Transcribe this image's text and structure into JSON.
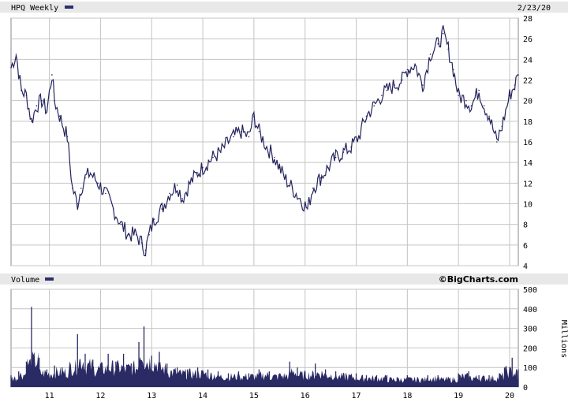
{
  "chart_data": [
    {
      "type": "line",
      "title": "HPQ Weekly",
      "date": "2/23/20",
      "x_tick_labels": [
        "11",
        "12",
        "13",
        "14",
        "15",
        "16",
        "17",
        "18",
        "19",
        "20"
      ],
      "y_tick_labels": [
        "4",
        "6",
        "8",
        "10",
        "12",
        "14",
        "16",
        "18",
        "20",
        "22",
        "24",
        "26",
        "28"
      ],
      "ylim": [
        4,
        28
      ],
      "xlim": [
        2010.25,
        2020.17
      ],
      "grid": true,
      "legend": "top-left",
      "series": [
        {
          "name": "HPQ Weekly",
          "x": [
            2010.25,
            2010.35,
            2010.45,
            2010.55,
            2010.65,
            2010.75,
            2010.85,
            2010.95,
            2011.05,
            2011.1,
            2011.2,
            2011.35,
            2011.45,
            2011.55,
            2011.62,
            2011.7,
            2011.8,
            2011.95,
            2012.1,
            2012.25,
            2012.4,
            2012.55,
            2012.7,
            2012.8,
            2012.88,
            2012.95,
            2013.05,
            2013.2,
            2013.35,
            2013.5,
            2013.6,
            2013.75,
            2013.9,
            2014.0,
            2014.2,
            2014.35,
            2014.5,
            2014.6,
            2014.75,
            2014.9,
            2015.0,
            2015.1,
            2015.25,
            2015.4,
            2015.5,
            2015.6,
            2015.75,
            2015.9,
            2016.05,
            2016.15,
            2016.3,
            2016.45,
            2016.6,
            2016.75,
            2016.9,
            2017.05,
            2017.2,
            2017.35,
            2017.5,
            2017.6,
            2017.75,
            2017.9,
            2018.0,
            2018.15,
            2018.3,
            2018.45,
            2018.6,
            2018.7,
            2018.8,
            2018.9,
            2019.0,
            2019.15,
            2019.25,
            2019.4,
            2019.5,
            2019.6,
            2019.75,
            2019.85,
            2020.0,
            2020.1,
            2020.17
          ],
          "values": [
            23.2,
            24.5,
            21.0,
            20.5,
            18.0,
            19.5,
            20.0,
            19.0,
            22.5,
            20.0,
            18.5,
            16.5,
            11.5,
            10.0,
            11.5,
            12.5,
            13.0,
            12.0,
            11.0,
            9.5,
            8.0,
            7.0,
            7.0,
            6.2,
            5.5,
            7.0,
            8.5,
            9.5,
            11.0,
            11.8,
            10.5,
            12.0,
            13.0,
            13.5,
            14.5,
            15.0,
            16.0,
            16.5,
            17.0,
            16.5,
            18.5,
            17.0,
            15.5,
            14.5,
            13.5,
            12.5,
            11.5,
            10.5,
            9.5,
            11.5,
            12.5,
            13.5,
            14.5,
            15.0,
            15.5,
            16.5,
            18.5,
            19.5,
            20.5,
            21.0,
            21.5,
            22.0,
            23.0,
            23.5,
            21.5,
            24.5,
            25.5,
            26.5,
            25.0,
            23.0,
            20.5,
            20.0,
            19.5,
            21.0,
            19.5,
            18.5,
            16.0,
            17.5,
            20.5,
            21.5,
            22.5
          ]
        }
      ]
    },
    {
      "type": "bar",
      "title": "Volume",
      "ylabel": "Millions",
      "y_tick_labels": [
        "0",
        "100",
        "200",
        "300",
        "400",
        "500"
      ],
      "ylim": [
        0,
        500
      ],
      "x_tick_labels": [
        "11",
        "12",
        "13",
        "14",
        "15",
        "16",
        "17",
        "18",
        "19",
        "20"
      ],
      "xlim": [
        2010.25,
        2020.17
      ],
      "grid": true,
      "series": [
        {
          "x": [
            2010.25,
            2010.4,
            2010.55,
            2010.65,
            2010.8,
            2010.95,
            2011.1,
            2011.25,
            2011.4,
            2011.55,
            2011.7,
            2011.85,
            2012.0,
            2012.15,
            2012.3,
            2012.45,
            2012.6,
            2012.75,
            2012.85,
            2013.0,
            2013.15,
            2013.3,
            2013.5,
            2013.7,
            2013.9,
            2014.1,
            2014.3,
            2014.5,
            2014.7,
            2014.9,
            2015.1,
            2015.3,
            2015.5,
            2015.7,
            2015.85,
            2016.0,
            2016.2,
            2016.4,
            2016.6,
            2016.8,
            2017.0,
            2017.2,
            2017.4,
            2017.6,
            2017.8,
            2018.0,
            2018.2,
            2018.4,
            2018.6,
            2018.8,
            2019.0,
            2019.2,
            2019.4,
            2019.6,
            2019.8,
            2019.9,
            2020.05,
            2020.17
          ],
          "values": [
            60,
            80,
            130,
            410,
            150,
            90,
            110,
            100,
            120,
            270,
            170,
            140,
            120,
            170,
            130,
            170,
            120,
            230,
            310,
            160,
            180,
            120,
            100,
            90,
            100,
            90,
            80,
            70,
            80,
            70,
            90,
            80,
            70,
            130,
            100,
            80,
            120,
            90,
            80,
            70,
            70,
            60,
            60,
            60,
            50,
            60,
            50,
            60,
            60,
            50,
            70,
            80,
            60,
            60,
            70,
            100,
            150,
            90
          ]
        }
      ]
    }
  ]
}
